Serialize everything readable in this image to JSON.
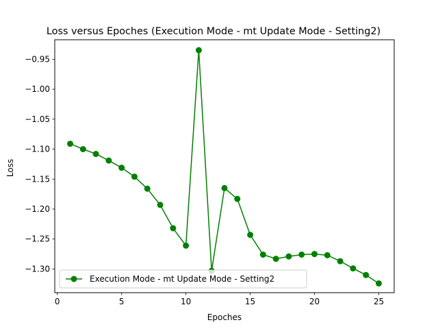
{
  "chart_data": {
    "type": "line",
    "title": "Loss versus Epoches (Execution Mode - mt Update Mode - Setting2)",
    "xlabel": "Epoches",
    "ylabel": "Loss",
    "xlim": [
      -0.2,
      26.2
    ],
    "ylim": [
      -1.3395,
      -0.9175
    ],
    "xticks": [
      0,
      5,
      10,
      15,
      20,
      25
    ],
    "xtick_labels": [
      "0",
      "5",
      "10",
      "15",
      "20",
      "25"
    ],
    "yticks": [
      -1.3,
      -1.25,
      -1.2,
      -1.15,
      -1.1,
      -1.05,
      -1.0,
      -0.95
    ],
    "ytick_labels": [
      "−1.30",
      "−1.25",
      "−1.20",
      "−1.15",
      "−1.10",
      "−1.05",
      "−1.00",
      "−0.95"
    ],
    "grid": false,
    "legend_position": "lower left",
    "series": [
      {
        "name": "Execution Mode - mt Update Mode - Setting2",
        "color": "#008000",
        "marker": "circle",
        "x": [
          1,
          2,
          3,
          4,
          5,
          6,
          7,
          8,
          9,
          10,
          11,
          12,
          13,
          14,
          15,
          16,
          17,
          18,
          19,
          20,
          21,
          22,
          23,
          24,
          25
        ],
        "y": [
          -1.091,
          -1.1,
          -1.108,
          -1.119,
          -1.131,
          -1.146,
          -1.166,
          -1.193,
          -1.232,
          -1.261,
          -0.935,
          -1.303,
          -1.165,
          -1.183,
          -1.243,
          -1.276,
          -1.283,
          -1.279,
          -1.276,
          -1.275,
          -1.277,
          -1.287,
          -1.299,
          -1.31,
          -1.324
        ]
      }
    ]
  }
}
